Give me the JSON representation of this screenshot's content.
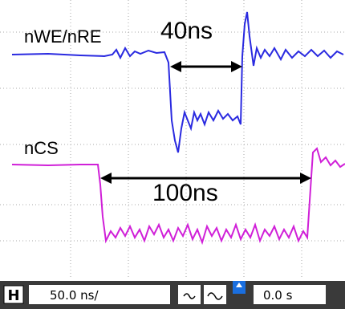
{
  "traces": [
    {
      "label": "nWE/nRE"
    },
    {
      "label": "nCS"
    }
  ],
  "measurements": [
    {
      "label": "40ns"
    },
    {
      "label": "100ns"
    }
  ],
  "status_bar": {
    "mode": "H",
    "timebase": "50.0 ns/",
    "position": "0.0 s"
  }
}
